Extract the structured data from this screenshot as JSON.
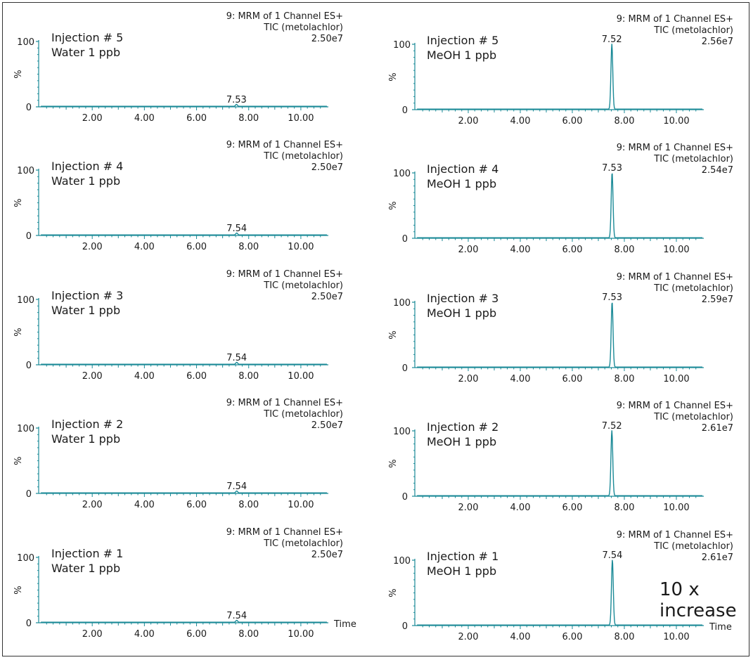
{
  "chart_data": [
    {
      "type": "line",
      "injection": "Injection # 5",
      "sample": "Water 1 ppb",
      "header1": "9: MRM of 1 Channel ES+",
      "header2": "TIC (metolachlor)",
      "intensity": "2.50e7",
      "peak_rt": 7.53,
      "peak_label": "7.53",
      "peak_pct": 3,
      "y_label": "%",
      "y_ticks": [
        "100",
        "0"
      ],
      "ylim": [
        0,
        100
      ],
      "xlim": [
        0,
        11
      ],
      "x_ticks": [
        "2.00",
        "4.00",
        "6.00",
        "8.00",
        "10.00"
      ],
      "xlabel": ""
    },
    {
      "type": "line",
      "injection": "Injection # 5",
      "sample": "MeOH 1 ppb",
      "header1": "9: MRM of 1 Channel ES+",
      "header2": "TIC (metolachlor)",
      "intensity": "2.56e7",
      "peak_rt": 7.52,
      "peak_label": "7.52",
      "peak_pct": 100,
      "y_label": "%",
      "y_ticks": [
        "100",
        "0"
      ],
      "ylim": [
        0,
        100
      ],
      "xlim": [
        0,
        11
      ],
      "x_ticks": [
        "2.00",
        "4.00",
        "6.00",
        "8.00",
        "10.00"
      ],
      "xlabel": ""
    },
    {
      "type": "line",
      "injection": "Injection # 4",
      "sample": "Water 1 ppb",
      "header1": "9: MRM of 1 Channel ES+",
      "header2": "TIC (metolachlor)",
      "intensity": "2.50e7",
      "peak_rt": 7.54,
      "peak_label": "7.54",
      "peak_pct": 3,
      "y_label": "%",
      "y_ticks": [
        "100",
        "0"
      ],
      "ylim": [
        0,
        100
      ],
      "xlim": [
        0,
        11
      ],
      "x_ticks": [
        "2.00",
        "4.00",
        "6.00",
        "8.00",
        "10.00"
      ],
      "xlabel": ""
    },
    {
      "type": "line",
      "injection": "Injection # 4",
      "sample": "MeOH 1 ppb",
      "header1": "9: MRM of 1 Channel ES+",
      "header2": "TIC (metolachlor)",
      "intensity": "2.54e7",
      "peak_rt": 7.53,
      "peak_label": "7.53",
      "peak_pct": 100,
      "y_label": "%",
      "y_ticks": [
        "100",
        "0"
      ],
      "ylim": [
        0,
        100
      ],
      "xlim": [
        0,
        11
      ],
      "x_ticks": [
        "2.00",
        "4.00",
        "6.00",
        "8.00",
        "10.00"
      ],
      "xlabel": ""
    },
    {
      "type": "line",
      "injection": "Injection # 3",
      "sample": "Water 1 ppb",
      "header1": "9: MRM of 1 Channel ES+",
      "header2": "TIC (metolachlor)",
      "intensity": "2.50e7",
      "peak_rt": 7.54,
      "peak_label": "7.54",
      "peak_pct": 3,
      "y_label": "%",
      "y_ticks": [
        "100",
        "0"
      ],
      "ylim": [
        0,
        100
      ],
      "xlim": [
        0,
        11
      ],
      "x_ticks": [
        "2.00",
        "4.00",
        "6.00",
        "8.00",
        "10.00"
      ],
      "xlabel": ""
    },
    {
      "type": "line",
      "injection": "Injection # 3",
      "sample": "MeOH 1 ppb",
      "header1": "9: MRM of 1 Channel ES+",
      "header2": "TIC (metolachlor)",
      "intensity": "2.59e7",
      "peak_rt": 7.53,
      "peak_label": "7.53",
      "peak_pct": 100,
      "y_label": "%",
      "y_ticks": [
        "100",
        "0"
      ],
      "ylim": [
        0,
        100
      ],
      "xlim": [
        0,
        11
      ],
      "x_ticks": [
        "2.00",
        "4.00",
        "6.00",
        "8.00",
        "10.00"
      ],
      "xlabel": ""
    },
    {
      "type": "line",
      "injection": "Injection # 2",
      "sample": "Water 1 ppb",
      "header1": "9: MRM of 1 Channel ES+",
      "header2": "TIC (metolachlor)",
      "intensity": "2.50e7",
      "peak_rt": 7.54,
      "peak_label": "7.54",
      "peak_pct": 3,
      "y_label": "%",
      "y_ticks": [
        "100",
        "0"
      ],
      "ylim": [
        0,
        100
      ],
      "xlim": [
        0,
        11
      ],
      "x_ticks": [
        "2.00",
        "4.00",
        "6.00",
        "8.00",
        "10.00"
      ],
      "xlabel": ""
    },
    {
      "type": "line",
      "injection": "Injection # 2",
      "sample": "MeOH 1 ppb",
      "header1": "9: MRM of 1 Channel ES+",
      "header2": "TIC (metolachlor)",
      "intensity": "2.61e7",
      "peak_rt": 7.52,
      "peak_label": "7.52",
      "peak_pct": 100,
      "y_label": "%",
      "y_ticks": [
        "100",
        "0"
      ],
      "ylim": [
        0,
        100
      ],
      "xlim": [
        0,
        11
      ],
      "x_ticks": [
        "2.00",
        "4.00",
        "6.00",
        "8.00",
        "10.00"
      ],
      "xlabel": ""
    },
    {
      "type": "line",
      "injection": "Injection # 1",
      "sample": "Water 1 ppb",
      "header1": "9: MRM of 1 Channel ES+",
      "header2": "TIC (metolachlor)",
      "intensity": "2.50e7",
      "peak_rt": 7.54,
      "peak_label": "7.54",
      "peak_pct": 3,
      "y_label": "%",
      "y_ticks": [
        "100",
        "0"
      ],
      "ylim": [
        0,
        100
      ],
      "xlim": [
        0,
        11
      ],
      "x_ticks": [
        "2.00",
        "4.00",
        "6.00",
        "8.00",
        "10.00"
      ],
      "xlabel": "Time"
    },
    {
      "type": "line",
      "injection": "Injection # 1",
      "sample": "MeOH 1 ppb",
      "header1": "9: MRM of 1 Channel ES+",
      "header2": "TIC (metolachlor)",
      "intensity": "2.61e7",
      "peak_rt": 7.54,
      "peak_label": "7.54",
      "peak_pct": 100,
      "y_label": "%",
      "y_ticks": [
        "100",
        "0"
      ],
      "ylim": [
        0,
        100
      ],
      "xlim": [
        0,
        11
      ],
      "x_ticks": [
        "2.00",
        "4.00",
        "6.00",
        "8.00",
        "10.00"
      ],
      "xlabel": "Time"
    }
  ],
  "annotation": {
    "line1": "10 x",
    "line2": "increase"
  },
  "colors": {
    "trace": "#1b8a97",
    "axis": "#1b8a97",
    "text": "#1a1a1a",
    "border": "#333333"
  }
}
